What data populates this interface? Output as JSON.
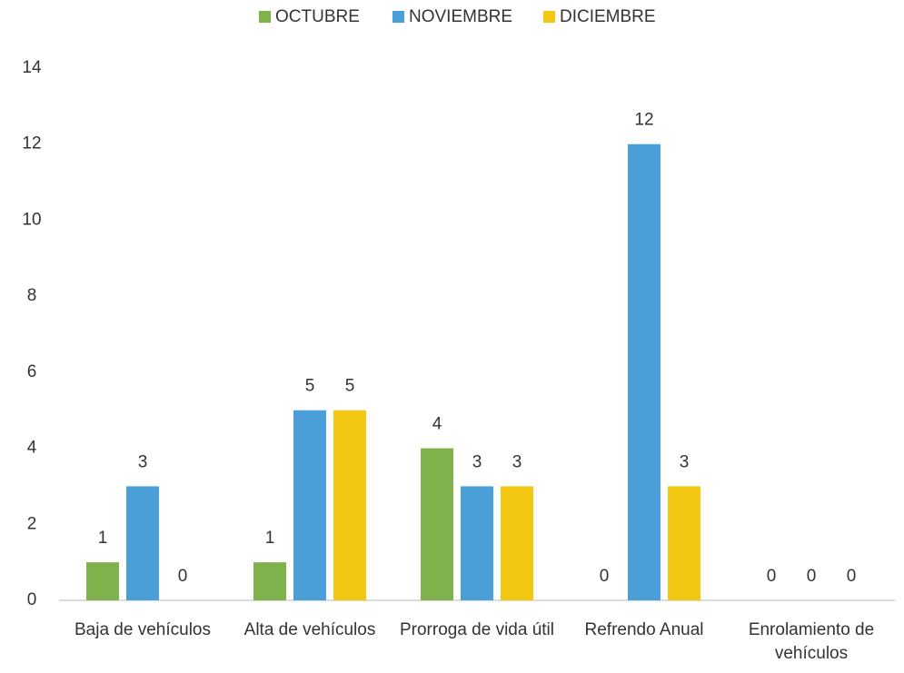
{
  "chart_data": {
    "type": "bar",
    "categories": [
      "Baja de vehículos",
      "Alta de vehículos",
      "Prorroga de vida útil",
      "Refrendo Anual",
      "Enrolamiento de vehículos"
    ],
    "series": [
      {
        "name": "OCTUBRE",
        "color": "#7fb24a",
        "values": [
          1,
          1,
          4,
          0,
          0
        ]
      },
      {
        "name": "NOVIEMBRE",
        "color": "#4a9fd8",
        "values": [
          3,
          5,
          3,
          12,
          0
        ]
      },
      {
        "name": "DICIEMBRE",
        "color": "#f2c813",
        "values": [
          0,
          5,
          3,
          3,
          0
        ]
      }
    ],
    "ylim": [
      0,
      14
    ],
    "yticks": [
      0,
      2,
      4,
      6,
      8,
      10,
      12,
      14
    ],
    "grid": false,
    "legend": "top"
  }
}
